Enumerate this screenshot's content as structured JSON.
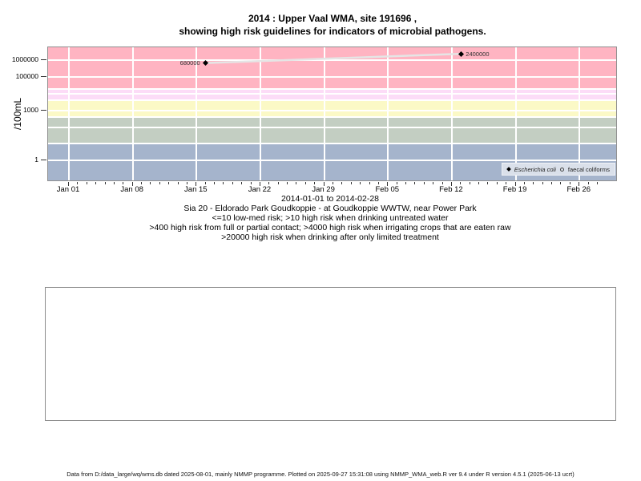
{
  "title": {
    "line1": "2014 : Upper Vaal WMA, site 191696 ,",
    "line2": "showing high risk guidelines for indicators of microbial pathogens."
  },
  "chart_data": {
    "type": "scatter",
    "title": "2014 : Upper Vaal WMA, site 191696 , showing high risk guidelines for indicators of microbial pathogens.",
    "ylabel": "/100mL",
    "xlabel": "",
    "y_scale": "log10",
    "ylim_log10": [
      -1.28,
      6.77
    ],
    "grid": "white-on-bands",
    "x_domain": {
      "start": "2014-01-01",
      "end": "2014-02-28",
      "days": 58
    },
    "x_major_ticks": [
      {
        "day": 0,
        "label": "Jan 01"
      },
      {
        "day": 7,
        "label": "Jan 08"
      },
      {
        "day": 14,
        "label": "Jan 15"
      },
      {
        "day": 21,
        "label": "Jan 22"
      },
      {
        "day": 28,
        "label": "Jan 29"
      },
      {
        "day": 35,
        "label": "Feb 05"
      },
      {
        "day": 42,
        "label": "Feb 12"
      },
      {
        "day": 49,
        "label": "Feb 19"
      },
      {
        "day": 56,
        "label": "Feb 26"
      }
    ],
    "y_ticks": [
      {
        "value": 1000000,
        "label": "1000000"
      },
      {
        "value": 100000,
        "label": "100000"
      },
      {
        "value": 1000,
        "label": "1000"
      },
      {
        "value": 1,
        "label": "1"
      }
    ],
    "gridline_values_y": [
      1,
      10,
      100,
      400,
      1000,
      4000,
      10000,
      20000,
      100000,
      1000000
    ],
    "risk_bands": [
      {
        "range": ">20000",
        "meaning": "high risk when drinking after only limited treatment",
        "from": 20000,
        "to": null,
        "color": "#ffb4c2"
      },
      {
        "range": "4000-20000",
        "meaning": "high risk when irrigating crops that are eaten raw",
        "from": 4000,
        "to": 20000,
        "color": "#fcdcf7"
      },
      {
        "range": "400-4000",
        "meaning": "high risk from full or partial contact",
        "from": 400,
        "to": 4000,
        "color": "#fbf9c6"
      },
      {
        "range": "10-400",
        "meaning": "high risk when drinking untreated water",
        "from": 10,
        "to": 400,
        "color": "#c3cec2"
      },
      {
        "range": "<=10",
        "meaning": "low-med risk",
        "from": null,
        "to": 10,
        "color": "#a5b4cc"
      }
    ],
    "series": [
      {
        "name": "Escherichia coli",
        "marker": "filled-diamond",
        "color": "#000000",
        "line_color": "#e5e5e5",
        "points": [
          {
            "date": "2014-01-16",
            "day": 15,
            "value": 680000,
            "label": "680000",
            "label_side": "left"
          },
          {
            "date": "2014-02-13",
            "day": 43,
            "value": 2400000,
            "label": "2400000",
            "label_side": "right"
          }
        ]
      },
      {
        "name": "faecal coliforms",
        "marker": "open-circle",
        "color": "#000000",
        "points": []
      }
    ],
    "legend": {
      "position": "bottom-right",
      "entries": [
        "Escherichia coli",
        "faecal coliforms"
      ]
    }
  },
  "caption": {
    "lines": [
      "2014-01-01 to 2014-02-28",
      "Sia 20 - Eldorado Park Goudkoppie - at Goudkoppie WWTW, near Power Park",
      "<=10 low-med risk; >10 high risk when drinking untreated water",
      ">400 high risk from full or partial contact; >4000 high risk when irrigating crops that are eaten raw",
      ">20000 high risk when drinking after only limited treatment"
    ]
  },
  "footer": {
    "text": "Data from D:/data_large/wq/wms.db dated 2025-08-01, mainly NMMP programme. Plotted on 2025-09-27 15:31:08 using NMMP_WMA_web.R ver 9.4 under R version 4.5.1 (2025-06-13 ucrt)"
  }
}
